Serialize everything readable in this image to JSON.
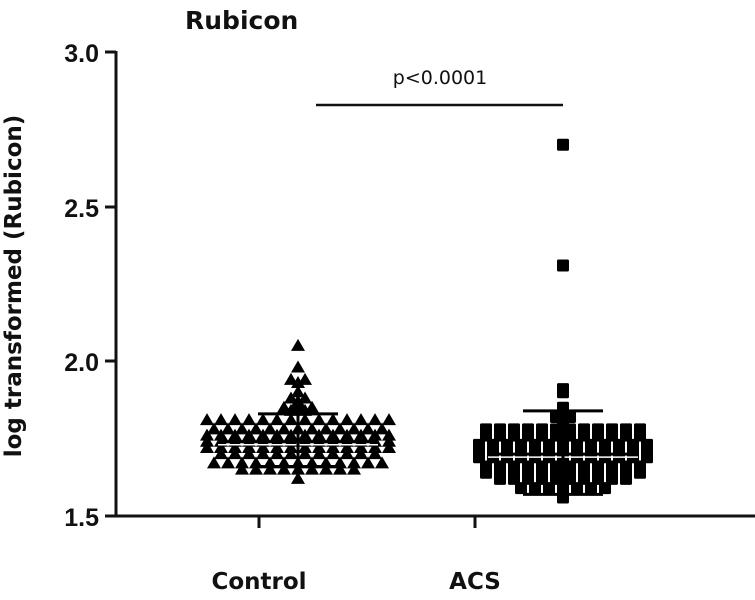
{
  "chart_data": {
    "type": "scatter",
    "subtype": "dot-plot with mean and SD",
    "title": "Rubicon",
    "xlabel": "",
    "ylabel": "log transformed (Rubicon)",
    "ylim": [
      1.5,
      3.0
    ],
    "yticks": [
      "1.5",
      "2.0",
      "2.5",
      "3.0"
    ],
    "categories": [
      "Control",
      "ACS"
    ],
    "grid": false,
    "legend": null,
    "series": [
      {
        "name": "Control",
        "marker": "triangle",
        "mean": 1.74,
        "sd_upper": 1.83,
        "sd_lower": 1.66,
        "max": 2.05,
        "min": 1.62,
        "values": [
          2.05,
          1.98,
          1.94,
          1.94,
          1.93,
          1.9,
          1.88,
          1.88,
          1.87,
          1.86,
          1.85,
          1.85,
          1.85,
          1.84,
          1.84,
          1.81,
          1.81,
          1.81,
          1.81,
          1.81,
          1.81,
          1.81,
          1.81,
          1.81,
          1.81,
          1.81,
          1.81,
          1.81,
          1.81,
          1.78,
          1.78,
          1.78,
          1.78,
          1.78,
          1.78,
          1.78,
          1.78,
          1.78,
          1.78,
          1.78,
          1.78,
          1.78,
          1.76,
          1.76,
          1.76,
          1.76,
          1.76,
          1.76,
          1.76,
          1.76,
          1.76,
          1.76,
          1.76,
          1.76,
          1.76,
          1.76,
          1.74,
          1.74,
          1.74,
          1.74,
          1.74,
          1.74,
          1.74,
          1.74,
          1.74,
          1.74,
          1.74,
          1.74,
          1.74,
          1.74,
          1.72,
          1.72,
          1.72,
          1.72,
          1.72,
          1.72,
          1.72,
          1.72,
          1.72,
          1.72,
          1.72,
          1.72,
          1.72,
          1.72,
          1.7,
          1.7,
          1.7,
          1.7,
          1.7,
          1.7,
          1.7,
          1.7,
          1.7,
          1.7,
          1.7,
          1.7,
          1.67,
          1.67,
          1.67,
          1.67,
          1.67,
          1.67,
          1.67,
          1.67,
          1.67,
          1.67,
          1.67,
          1.67,
          1.67,
          1.65,
          1.65,
          1.65,
          1.65,
          1.65,
          1.65,
          1.65,
          1.65,
          1.65,
          1.62
        ]
      },
      {
        "name": "ACS",
        "marker": "square",
        "mean": 1.7,
        "sd_upper": 1.84,
        "sd_lower": 1.57,
        "max": 2.7,
        "min": 1.56,
        "values": [
          2.7,
          2.31,
          1.91,
          1.9,
          1.85,
          1.83,
          1.82,
          1.82,
          1.81,
          1.8,
          1.78,
          1.78,
          1.78,
          1.78,
          1.78,
          1.78,
          1.78,
          1.78,
          1.78,
          1.78,
          1.78,
          1.78,
          1.76,
          1.76,
          1.76,
          1.76,
          1.76,
          1.76,
          1.76,
          1.76,
          1.76,
          1.76,
          1.76,
          1.76,
          1.73,
          1.73,
          1.73,
          1.73,
          1.73,
          1.73,
          1.73,
          1.73,
          1.73,
          1.73,
          1.73,
          1.73,
          1.73,
          1.71,
          1.71,
          1.71,
          1.71,
          1.71,
          1.71,
          1.71,
          1.71,
          1.71,
          1.71,
          1.71,
          1.71,
          1.71,
          1.69,
          1.69,
          1.69,
          1.69,
          1.69,
          1.69,
          1.69,
          1.69,
          1.69,
          1.69,
          1.69,
          1.69,
          1.69,
          1.66,
          1.66,
          1.66,
          1.66,
          1.66,
          1.66,
          1.66,
          1.66,
          1.66,
          1.66,
          1.66,
          1.66,
          1.64,
          1.64,
          1.64,
          1.64,
          1.64,
          1.64,
          1.64,
          1.64,
          1.64,
          1.64,
          1.64,
          1.64,
          1.62,
          1.62,
          1.62,
          1.62,
          1.62,
          1.62,
          1.62,
          1.62,
          1.62,
          1.62,
          1.59,
          1.59,
          1.59,
          1.59,
          1.59,
          1.59,
          1.59,
          1.56
        ]
      }
    ],
    "annotations": [
      {
        "text": "p<0.0001",
        "type": "significance-bracket",
        "between": [
          "Control",
          "ACS"
        ]
      }
    ]
  },
  "ui": {
    "title": "Rubicon",
    "ylabel": "log transformed (Rubicon)",
    "yticks": [
      "3.0",
      "2.5",
      "2.0",
      "1.5"
    ],
    "xticks": [
      "Control",
      "ACS"
    ],
    "pvalue": "p<0.0001",
    "colors": {
      "marker": "#000000",
      "axis": "#111111",
      "background": "#ffffff"
    }
  }
}
